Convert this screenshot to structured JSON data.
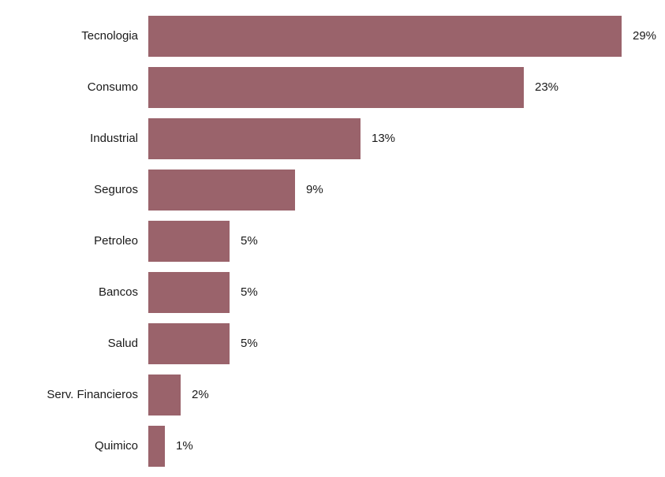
{
  "chart_data": {
    "type": "bar",
    "orientation": "horizontal",
    "title": "",
    "xlabel": "",
    "ylabel": "",
    "categories": [
      "Tecnologia",
      "Consumo",
      "Industrial",
      "Seguros",
      "Petroleo",
      "Bancos",
      "Salud",
      "Serv. Financieros",
      "Quimico"
    ],
    "values": [
      29,
      23,
      13,
      9,
      5,
      5,
      5,
      2,
      1
    ],
    "value_labels": [
      "29%",
      "23%",
      "13%",
      "9%",
      "5%",
      "5%",
      "5%",
      "2%",
      "1%"
    ],
    "value_suffix": "%",
    "bar_color": "#9a636b",
    "text_color": "#1a1a1a",
    "background_color": "#ffffff",
    "grid": false,
    "legend": false,
    "xlim": [
      0,
      29
    ]
  }
}
